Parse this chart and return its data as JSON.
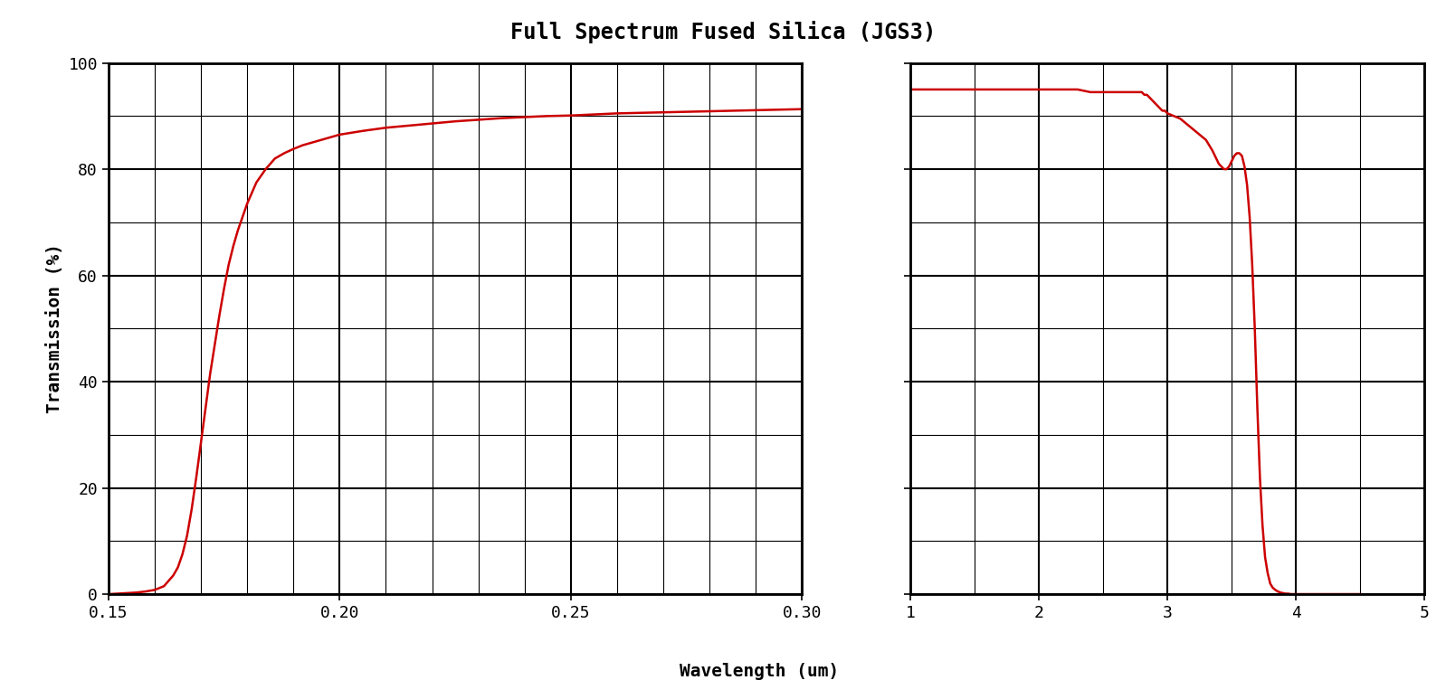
{
  "title": "Full Spectrum Fused Silica (JGS3)",
  "xlabel": "Wavelength (um)",
  "ylabel": "Transmission (%)",
  "line_color": "#cc0000",
  "line_width": 1.8,
  "background_color": "#ffffff",
  "grid_color": "#000000",
  "title_fontsize": 17,
  "label_fontsize": 14,
  "tick_fontsize": 13,
  "uv_xlim": [
    0.15,
    0.3
  ],
  "ir_xlim": [
    1,
    5
  ],
  "ylim": [
    0,
    100
  ],
  "uv_xticks": [
    0.15,
    0.2,
    0.25,
    0.3
  ],
  "uv_xminor": 0.01,
  "uv_yminor": 10,
  "ir_xticks": [
    1,
    2,
    3,
    4,
    5
  ],
  "ir_xminor": 0.5,
  "ir_yminor": 10,
  "yticks": [
    0,
    20,
    40,
    60,
    80,
    100
  ],
  "uv_x": [
    0.15,
    0.152,
    0.154,
    0.156,
    0.158,
    0.16,
    0.162,
    0.163,
    0.164,
    0.165,
    0.166,
    0.167,
    0.168,
    0.169,
    0.17,
    0.171,
    0.172,
    0.173,
    0.174,
    0.175,
    0.176,
    0.177,
    0.178,
    0.179,
    0.18,
    0.181,
    0.182,
    0.184,
    0.186,
    0.188,
    0.19,
    0.192,
    0.194,
    0.196,
    0.198,
    0.2,
    0.205,
    0.21,
    0.215,
    0.22,
    0.225,
    0.23,
    0.235,
    0.24,
    0.245,
    0.25,
    0.255,
    0.26,
    0.265,
    0.27,
    0.275,
    0.28,
    0.285,
    0.29,
    0.295,
    0.3
  ],
  "uv_y": [
    0.0,
    0.1,
    0.2,
    0.3,
    0.5,
    0.8,
    1.5,
    2.5,
    3.5,
    5.0,
    7.5,
    11.0,
    16.0,
    22.0,
    28.5,
    35.0,
    41.5,
    47.0,
    52.5,
    57.5,
    62.0,
    65.5,
    68.5,
    71.0,
    73.5,
    75.5,
    77.5,
    80.0,
    82.0,
    83.0,
    83.8,
    84.5,
    85.0,
    85.5,
    86.0,
    86.5,
    87.2,
    87.8,
    88.2,
    88.6,
    89.0,
    89.3,
    89.6,
    89.8,
    90.0,
    90.1,
    90.3,
    90.5,
    90.6,
    90.7,
    90.8,
    90.9,
    91.0,
    91.1,
    91.2,
    91.3
  ],
  "ir_x": [
    1.0,
    1.1,
    1.2,
    1.3,
    1.4,
    1.5,
    1.6,
    1.7,
    1.8,
    1.9,
    2.0,
    2.1,
    2.2,
    2.3,
    2.4,
    2.5,
    2.6,
    2.65,
    2.7,
    2.72,
    2.74,
    2.76,
    2.78,
    2.8,
    2.82,
    2.84,
    2.86,
    2.88,
    2.9,
    2.92,
    2.94,
    2.96,
    2.98,
    3.0,
    3.05,
    3.1,
    3.15,
    3.2,
    3.25,
    3.3,
    3.35,
    3.38,
    3.4,
    3.42,
    3.44,
    3.46,
    3.48,
    3.5,
    3.52,
    3.54,
    3.56,
    3.58,
    3.6,
    3.62,
    3.64,
    3.66,
    3.68,
    3.7,
    3.72,
    3.74,
    3.76,
    3.78,
    3.8,
    3.82,
    3.84,
    3.86,
    3.88,
    3.9,
    3.92,
    3.94,
    3.96,
    3.98,
    4.0,
    4.05,
    4.1,
    4.2,
    4.3,
    4.5
  ],
  "ir_y": [
    95.0,
    95.0,
    95.0,
    95.0,
    95.0,
    95.0,
    95.0,
    95.0,
    95.0,
    95.0,
    95.0,
    95.0,
    95.0,
    95.0,
    94.5,
    94.5,
    94.5,
    94.5,
    94.5,
    94.5,
    94.5,
    94.5,
    94.5,
    94.5,
    94.0,
    94.0,
    93.5,
    93.0,
    92.5,
    92.0,
    91.5,
    91.0,
    91.0,
    90.5,
    90.0,
    89.5,
    88.5,
    87.5,
    86.5,
    85.5,
    83.5,
    82.0,
    81.0,
    80.5,
    80.0,
    80.0,
    80.5,
    81.5,
    82.5,
    83.0,
    83.0,
    82.5,
    80.5,
    77.0,
    71.0,
    62.0,
    50.0,
    35.0,
    22.0,
    13.0,
    7.0,
    4.0,
    2.0,
    1.2,
    0.8,
    0.5,
    0.3,
    0.2,
    0.1,
    0.1,
    0.0,
    0.0,
    0.0,
    0.0,
    0.0,
    0.0,
    0.0,
    0.0
  ]
}
